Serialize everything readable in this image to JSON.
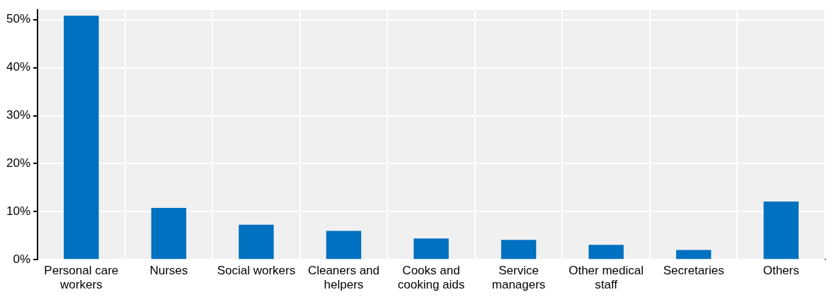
{
  "chart_data": {
    "type": "bar",
    "categories": [
      "Personal care workers",
      "Nurses",
      "Social workers",
      "Cleaners and helpers",
      "Cooks and cooking aids",
      "Service managers",
      "Other medical staff",
      "Secretaries",
      "Others"
    ],
    "values": [
      50.8,
      10.8,
      7.3,
      6.0,
      4.4,
      4.1,
      3.1,
      2.0,
      12.1
    ],
    "color": "#0070c0",
    "ylim": [
      0,
      52
    ],
    "yticks": [
      {
        "value": 0,
        "label": "0%"
      },
      {
        "value": 10,
        "label": "10%"
      },
      {
        "value": 20,
        "label": "20%"
      },
      {
        "value": 30,
        "label": "30%"
      },
      {
        "value": 40,
        "label": "40%"
      },
      {
        "value": 50,
        "label": "50%"
      }
    ],
    "grid": true,
    "legend": false
  }
}
